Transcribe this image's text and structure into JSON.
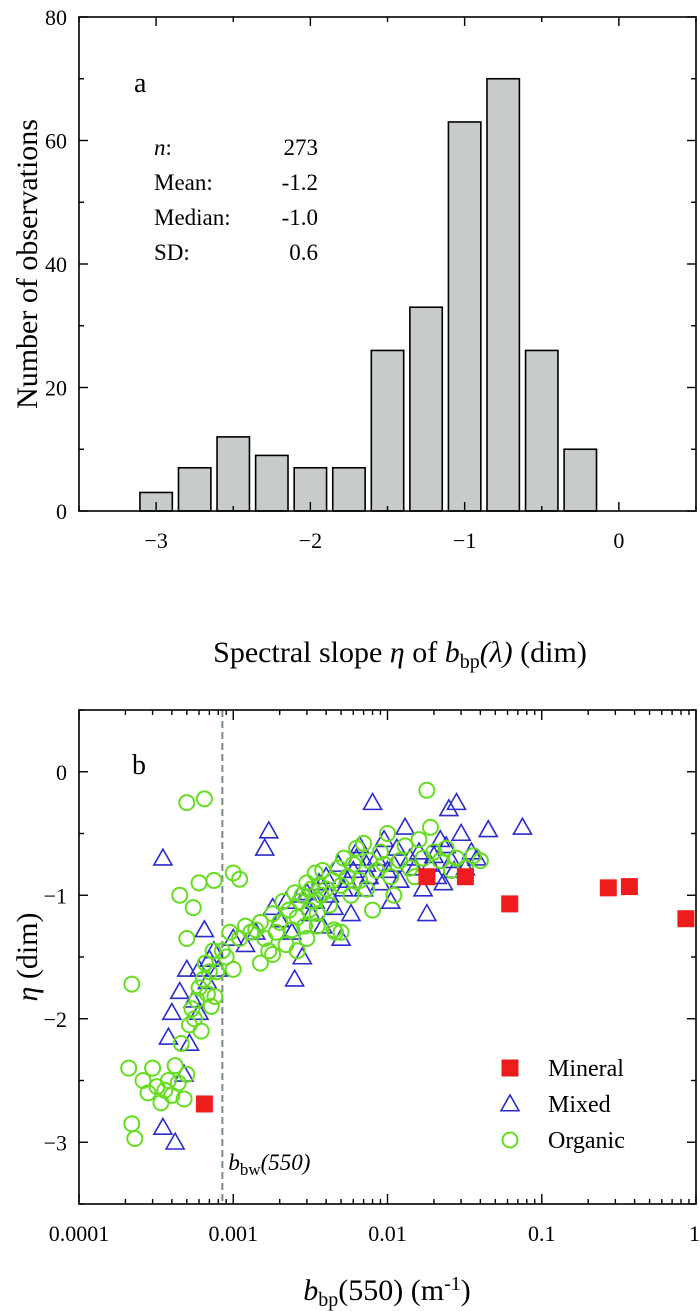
{
  "chart_data": [
    {
      "type": "bar",
      "panel_label": "a",
      "xlabel_parts": [
        "Spectral slope ",
        "η",
        " of ",
        "b",
        "bp",
        "(λ)",
        " (dim)"
      ],
      "ylabel": "Number of observations",
      "xlim": [
        -3.5,
        0.5
      ],
      "ylim": [
        0,
        80
      ],
      "x_ticks": [
        -3,
        -2,
        -1,
        0
      ],
      "x_tick_labels": [
        "−3",
        "−2",
        "−1",
        "0"
      ],
      "y_ticks": [
        0,
        20,
        40,
        60,
        80
      ],
      "y_tick_labels": [
        "0",
        "20",
        "40",
        "60",
        "80"
      ],
      "bin_width": 0.25,
      "bin_centers": [
        -3.0,
        -2.75,
        -2.5,
        -2.25,
        -2.0,
        -1.75,
        -1.5,
        -1.25,
        -1.0,
        -0.75,
        -0.5,
        -0.25
      ],
      "values": [
        3,
        7,
        12,
        9,
        7,
        7,
        26,
        33,
        63,
        70,
        26,
        10
      ],
      "bar_color": "#c8ccc8",
      "stats": [
        {
          "label": "n",
          "label_suffix": ":",
          "value": "273"
        },
        {
          "label": "Mean:",
          "label_suffix": "",
          "value": "-1.2"
        },
        {
          "label": "Median:",
          "label_suffix": "",
          "value": "-1.0"
        },
        {
          "label": "SD:",
          "label_suffix": "",
          "value": "0.6"
        }
      ]
    },
    {
      "type": "scatter",
      "panel_label": "b",
      "x_scale": "log",
      "xlim": [
        0.0001,
        1
      ],
      "ylim": [
        -3.5,
        0.5
      ],
      "x_ticks": [
        0.0001,
        0.001,
        0.01,
        0.1,
        1
      ],
      "x_tick_labels": [
        "0.0001",
        "0.001",
        "0.01",
        "0.1",
        "1"
      ],
      "y_ticks": [
        -3,
        -2,
        -1,
        0
      ],
      "y_tick_labels": [
        "−3",
        "−2",
        "−1",
        "0"
      ],
      "xlabel_parts": [
        "b",
        "bp",
        "(550) (m",
        "-1",
        ")"
      ],
      "ylabel_parts": [
        "η",
        " (dim)"
      ],
      "vline": {
        "x": 0.00085,
        "label_main": "b",
        "label_sub": "bw",
        "label_tail": "(550)",
        "color": "#7a8a8a"
      },
      "series": [
        {
          "name": "Mineral",
          "marker": "square",
          "color": "#ee1c1c",
          "points": [
            [
              0.00065,
              -2.69
            ],
            [
              0.018,
              -0.85
            ],
            [
              0.032,
              -0.85
            ],
            [
              0.062,
              -1.07
            ],
            [
              0.27,
              -0.94
            ],
            [
              0.37,
              -0.93
            ],
            [
              0.86,
              -1.19
            ]
          ]
        },
        {
          "name": "Mixed",
          "marker": "triangle",
          "color": "#2b2bd0",
          "points": [
            [
              0.00035,
              -0.7
            ],
            [
              0.00035,
              -2.88
            ],
            [
              0.00042,
              -3.0
            ],
            [
              0.00038,
              -2.15
            ],
            [
              0.0004,
              -1.95
            ],
            [
              0.00045,
              -1.78
            ],
            [
              0.0005,
              -1.6
            ],
            [
              0.00055,
              -1.85
            ],
            [
              0.0006,
              -1.6
            ],
            [
              0.00065,
              -1.28
            ],
            [
              0.0007,
              -1.52
            ],
            [
              0.00075,
              -1.45
            ],
            [
              0.0008,
              -1.6
            ],
            [
              0.00048,
              -2.45
            ],
            [
              0.00052,
              -2.2
            ],
            [
              0.0006,
              -1.95
            ],
            [
              0.00068,
              -1.7
            ],
            [
              0.001,
              -1.35
            ],
            [
              0.0012,
              -1.4
            ],
            [
              0.0014,
              -1.3
            ],
            [
              0.0016,
              -0.62
            ],
            [
              0.0017,
              -0.48
            ],
            [
              0.0018,
              -1.1
            ],
            [
              0.002,
              -1.2
            ],
            [
              0.0022,
              -1.05
            ],
            [
              0.0024,
              -1.3
            ],
            [
              0.0025,
              -1.68
            ],
            [
              0.0027,
              -1.0
            ],
            [
              0.0028,
              -1.5
            ],
            [
              0.003,
              -0.98
            ],
            [
              0.0032,
              -1.15
            ],
            [
              0.0034,
              -1.05
            ],
            [
              0.0036,
              -0.9
            ],
            [
              0.0038,
              -1.25
            ],
            [
              0.004,
              -0.85
            ],
            [
              0.0042,
              -1.0
            ],
            [
              0.0045,
              -1.1
            ],
            [
              0.0048,
              -0.75
            ],
            [
              0.005,
              -1.35
            ],
            [
              0.0052,
              -0.95
            ],
            [
              0.0055,
              -0.88
            ],
            [
              0.0058,
              -1.15
            ],
            [
              0.006,
              -0.8
            ],
            [
              0.0063,
              -0.7
            ],
            [
              0.0066,
              -0.6
            ],
            [
              0.007,
              -0.95
            ],
            [
              0.0073,
              -0.75
            ],
            [
              0.0076,
              -0.85
            ],
            [
              0.008,
              -0.25
            ],
            [
              0.0085,
              -0.7
            ],
            [
              0.009,
              -0.9
            ],
            [
              0.0095,
              -0.55
            ],
            [
              0.01,
              -0.8
            ],
            [
              0.0105,
              -1.05
            ],
            [
              0.011,
              -0.75
            ],
            [
              0.0115,
              -0.62
            ],
            [
              0.012,
              -0.88
            ],
            [
              0.013,
              -0.45
            ],
            [
              0.014,
              -0.7
            ],
            [
              0.015,
              -0.78
            ],
            [
              0.016,
              -0.65
            ],
            [
              0.017,
              -0.95
            ],
            [
              0.018,
              -1.15
            ],
            [
              0.019,
              -0.75
            ],
            [
              0.02,
              -0.68
            ],
            [
              0.021,
              -0.85
            ],
            [
              0.022,
              -0.55
            ],
            [
              0.023,
              -0.9
            ],
            [
              0.024,
              -0.6
            ],
            [
              0.025,
              -0.3
            ],
            [
              0.026,
              -0.72
            ],
            [
              0.027,
              -0.8
            ],
            [
              0.028,
              -0.25
            ],
            [
              0.03,
              -0.5
            ],
            [
              0.032,
              -0.78
            ],
            [
              0.035,
              -0.65
            ],
            [
              0.038,
              -0.7
            ],
            [
              0.045,
              -0.47
            ],
            [
              0.075,
              -0.45
            ]
          ]
        },
        {
          "name": "Organic",
          "marker": "circle",
          "color": "#66dd22",
          "points": [
            [
              0.00022,
              -1.72
            ],
            [
              0.00021,
              -2.4
            ],
            [
              0.00022,
              -2.85
            ],
            [
              0.00023,
              -2.97
            ],
            [
              0.00026,
              -2.5
            ],
            [
              0.00028,
              -2.6
            ],
            [
              0.0003,
              -2.4
            ],
            [
              0.00032,
              -2.55
            ],
            [
              0.00034,
              -2.68
            ],
            [
              0.00036,
              -2.58
            ],
            [
              0.00038,
              -2.5
            ],
            [
              0.0004,
              -2.62
            ],
            [
              0.00042,
              -2.38
            ],
            [
              0.00044,
              -2.52
            ],
            [
              0.00046,
              -2.2
            ],
            [
              0.00048,
              -2.65
            ],
            [
              0.0005,
              -2.45
            ],
            [
              0.00052,
              -2.05
            ],
            [
              0.00054,
              -1.92
            ],
            [
              0.00056,
              -2.0
            ],
            [
              0.00058,
              -1.85
            ],
            [
              0.0006,
              -1.75
            ],
            [
              0.00062,
              -2.1
            ],
            [
              0.00064,
              -1.68
            ],
            [
              0.00066,
              -1.55
            ],
            [
              0.00068,
              -1.8
            ],
            [
              0.0007,
              -1.62
            ],
            [
              0.00072,
              -1.9
            ],
            [
              0.00074,
              -1.45
            ],
            [
              0.00076,
              -1.82
            ],
            [
              0.00078,
              -1.62
            ],
            [
              0.0005,
              -0.25
            ],
            [
              0.00065,
              -0.22
            ],
            [
              0.00045,
              -1.0
            ],
            [
              0.0005,
              -1.35
            ],
            [
              0.00055,
              -1.1
            ],
            [
              0.0006,
              -0.9
            ],
            [
              0.00075,
              -0.88
            ],
            [
              0.001,
              -0.82
            ],
            [
              0.0011,
              -0.87
            ],
            [
              0.00085,
              -1.45
            ],
            [
              0.0009,
              -1.5
            ],
            [
              0.00095,
              -1.3
            ],
            [
              0.001,
              -1.6
            ],
            [
              0.0011,
              -1.35
            ],
            [
              0.0012,
              -1.25
            ],
            [
              0.0013,
              -1.3
            ],
            [
              0.0014,
              -1.28
            ],
            [
              0.0015,
              -1.22
            ],
            [
              0.0016,
              -1.35
            ],
            [
              0.0017,
              -1.45
            ],
            [
              0.0018,
              -1.15
            ],
            [
              0.0019,
              -1.3
            ],
            [
              0.002,
              -1.22
            ],
            [
              0.0021,
              -1.05
            ],
            [
              0.0022,
              -1.4
            ],
            [
              0.0023,
              -1.12
            ],
            [
              0.0024,
              -1.28
            ],
            [
              0.0025,
              -0.98
            ],
            [
              0.0026,
              -1.18
            ],
            [
              0.0027,
              -1.05
            ],
            [
              0.0028,
              -1.0
            ],
            [
              0.0029,
              -1.25
            ],
            [
              0.003,
              -0.9
            ],
            [
              0.0031,
              -1.12
            ],
            [
              0.0032,
              -0.95
            ],
            [
              0.0033,
              -1.05
            ],
            [
              0.0034,
              -0.82
            ],
            [
              0.0035,
              -1.15
            ],
            [
              0.0036,
              -0.92
            ],
            [
              0.0037,
              -1.0
            ],
            [
              0.0038,
              -0.8
            ],
            [
              0.004,
              -0.95
            ],
            [
              0.0042,
              -1.08
            ],
            [
              0.0044,
              -0.88
            ],
            [
              0.0046,
              -1.3
            ],
            [
              0.0048,
              -0.78
            ],
            [
              0.005,
              -0.92
            ],
            [
              0.0052,
              -0.7
            ],
            [
              0.0055,
              -0.85
            ],
            [
              0.0058,
              -1.0
            ],
            [
              0.006,
              -0.75
            ],
            [
              0.0063,
              -0.62
            ],
            [
              0.0066,
              -0.88
            ],
            [
              0.007,
              -0.58
            ],
            [
              0.0073,
              -0.95
            ],
            [
              0.0076,
              -0.72
            ],
            [
              0.008,
              -1.12
            ],
            [
              0.0085,
              -0.8
            ],
            [
              0.009,
              -0.65
            ],
            [
              0.0095,
              -0.75
            ],
            [
              0.01,
              -0.5
            ],
            [
              0.0105,
              -0.85
            ],
            [
              0.011,
              -1.0
            ],
            [
              0.012,
              -0.72
            ],
            [
              0.013,
              -0.6
            ],
            [
              0.014,
              -0.78
            ],
            [
              0.015,
              -0.85
            ],
            [
              0.016,
              -0.55
            ],
            [
              0.017,
              -0.7
            ],
            [
              0.018,
              -0.15
            ],
            [
              0.019,
              -0.45
            ],
            [
              0.02,
              -0.65
            ],
            [
              0.022,
              -0.72
            ],
            [
              0.024,
              -0.62
            ],
            [
              0.026,
              -0.8
            ],
            [
              0.028,
              -0.7
            ],
            [
              0.032,
              -0.78
            ],
            [
              0.036,
              -0.68
            ],
            [
              0.04,
              -0.72
            ],
            [
              0.003,
              -1.35
            ],
            [
              0.0045,
              -1.28
            ],
            [
              0.005,
              -1.3
            ],
            [
              0.0026,
              -1.45
            ],
            [
              0.0035,
              -1.25
            ],
            [
              0.0015,
              -1.55
            ],
            [
              0.0018,
              -1.48
            ]
          ]
        }
      ],
      "legend": {
        "position": "bottom-right",
        "entries": [
          "Mineral",
          "Mixed",
          "Organic"
        ]
      }
    }
  ]
}
